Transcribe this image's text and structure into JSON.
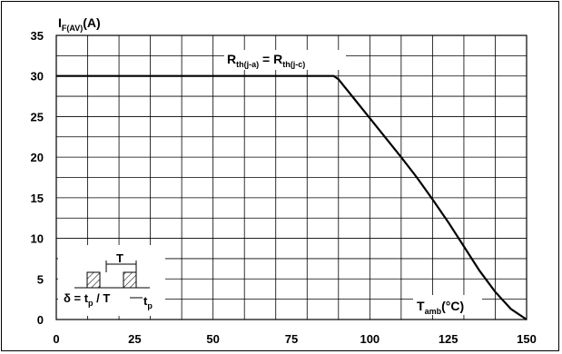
{
  "chart_data": {
    "type": "line",
    "ylabel": {
      "main": "I",
      "sub": "F(AV)",
      "unit": "(A)"
    },
    "xlabel": {
      "main": "T",
      "sub": "amb",
      "unit": "(°C)"
    },
    "xlim": [
      0,
      150
    ],
    "ylim": [
      0,
      35
    ],
    "x_ticks": [
      "0",
      "25",
      "50",
      "75",
      "100",
      "125",
      "150"
    ],
    "y_ticks": [
      "0",
      "5",
      "10",
      "15",
      "20",
      "25",
      "30",
      "35"
    ],
    "grid": "on",
    "annotation": {
      "r1": "R",
      "r1sub": "th(j-a)",
      "eq": " = ",
      "r2": "R",
      "r2sub": "th(j-c)"
    },
    "inset": {
      "period_label": "T",
      "delta": "δ",
      "formula_left": " = t",
      "formula_sub": "p",
      "formula_right": " / T",
      "tp_label": "t",
      "tp_sub": "p"
    },
    "series": [
      {
        "x": [
          0,
          5,
          10,
          15,
          20,
          25,
          30,
          35,
          40,
          45,
          50,
          55,
          60,
          65,
          70,
          75,
          80,
          85,
          88.5,
          90,
          95,
          100,
          105,
          110,
          115,
          120,
          125,
          130,
          135,
          140,
          145,
          150
        ],
        "y": [
          30,
          30,
          30,
          30,
          30,
          30,
          30,
          30,
          30,
          30,
          30,
          30,
          30,
          30,
          30,
          30,
          30,
          30,
          30,
          29.6,
          27.2,
          24.8,
          22.4,
          20.0,
          17.5,
          14.8,
          12.0,
          9.0,
          6.0,
          3.4,
          1.3,
          0
        ]
      }
    ]
  }
}
